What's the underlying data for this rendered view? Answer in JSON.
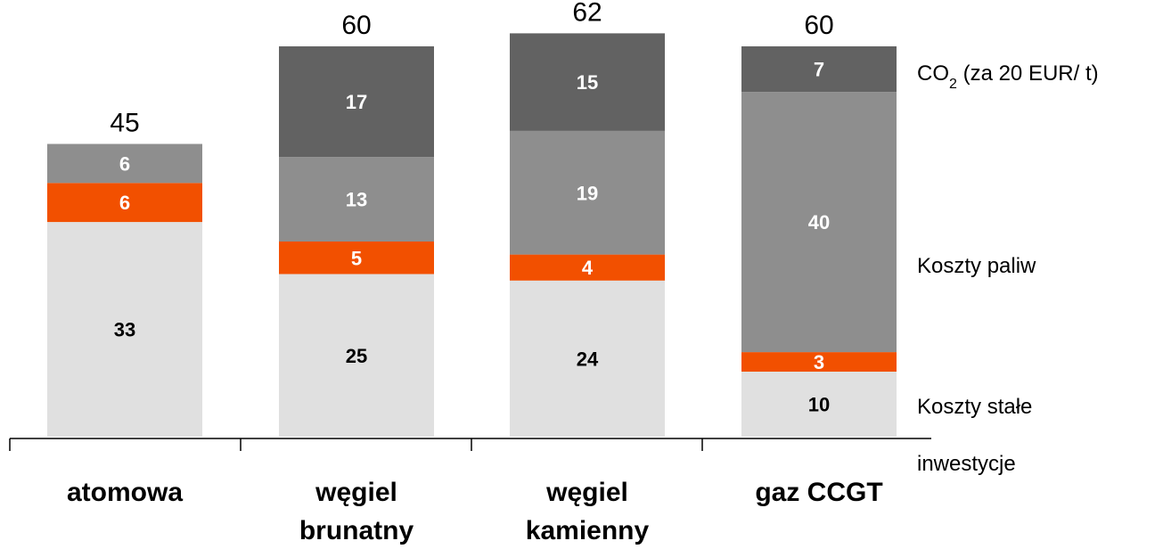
{
  "chart_data": {
    "type": "bar",
    "stacked": true,
    "categories": [
      [
        "atomowa"
      ],
      [
        "węgiel",
        "brunatny"
      ],
      [
        "węgiel",
        "kamienny"
      ],
      [
        "gaz CCGT"
      ]
    ],
    "series": [
      {
        "values": [
          33,
          25,
          24,
          10
        ],
        "color": "#e0e0e0",
        "label_color": "#000000"
      },
      {
        "values": [
          6,
          5,
          4,
          3
        ],
        "color": "#f25000",
        "label_color": "#ffffff"
      },
      {
        "values": [
          6,
          13,
          19,
          40
        ],
        "color": "#8e8e8e",
        "label_color": "#ffffff"
      },
      {
        "values": [
          0,
          17,
          15,
          7
        ],
        "color": "#626262",
        "label_color": "#ffffff"
      }
    ],
    "totals": [
      45,
      60,
      62,
      60
    ],
    "legend": [
      {
        "text": "CO",
        "sub": "2",
        "rest": " (za 20 EUR/ t)"
      },
      {
        "text": "Koszty paliw"
      },
      {
        "text": "Koszty stałe"
      },
      {
        "text": "inwestycje"
      }
    ],
    "ylim": [
      0,
      62
    ],
    "grid": false
  }
}
